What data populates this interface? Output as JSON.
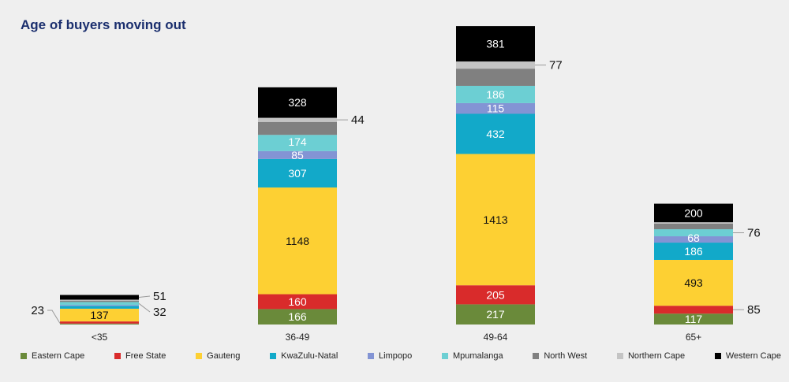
{
  "chart_data": {
    "type": "bar",
    "stacked": true,
    "title": "Age of buyers moving out",
    "categories": [
      "<35",
      "36-49",
      "49-64",
      "65+"
    ],
    "series": [
      {
        "name": "Eastern Cape",
        "color": "#6a8a3a",
        "values": [
          10,
          166,
          217,
          117
        ],
        "labels": [
          null,
          "166",
          "217",
          "117"
        ]
      },
      {
        "name": "Free State",
        "color": "#d92b2b",
        "values": [
          23,
          160,
          205,
          85
        ],
        "labels": [
          "23",
          "160",
          "205",
          "85"
        ]
      },
      {
        "name": "Gauteng",
        "color": "#fdd033",
        "values": [
          137,
          1148,
          1413,
          493
        ],
        "labels": [
          "137",
          "1148",
          "1413",
          "493"
        ]
      },
      {
        "name": "KwaZulu-Natal",
        "color": "#12a9c9",
        "values": [
          30,
          307,
          432,
          186
        ],
        "labels": [
          null,
          "307",
          "432",
          "186"
        ]
      },
      {
        "name": "Limpopo",
        "color": "#8394d4",
        "values": [
          10,
          85,
          115,
          68
        ],
        "labels": [
          null,
          "85",
          "115",
          "68"
        ]
      },
      {
        "name": "Mpumalanga",
        "color": "#6ccfd3",
        "values": [
          32,
          174,
          186,
          76
        ],
        "labels": [
          "32",
          "174",
          "186",
          "76"
        ]
      },
      {
        "name": "North West",
        "color": "#808080",
        "values": [
          15,
          140,
          185,
          60
        ],
        "labels": [
          null,
          null,
          null,
          null
        ]
      },
      {
        "name": "Northern Cape",
        "color": "#c4c4c4",
        "values": [
          10,
          44,
          77,
          15
        ],
        "labels": [
          null,
          "44",
          "77",
          null
        ]
      },
      {
        "name": "Western Cape",
        "color": "#000000",
        "values": [
          51,
          328,
          381,
          200
        ],
        "labels": [
          "51",
          "328",
          "381",
          "200"
        ]
      }
    ],
    "outside_labels": {
      "<35": [
        "Free State",
        "Mpumalanga",
        "Western Cape"
      ],
      "36-49": [
        "Northern Cape"
      ],
      "49-64": [
        "Northern Cape"
      ],
      "65+": [
        "Free State",
        "Mpumalanga"
      ]
    },
    "legend_position": "bottom",
    "grid": false,
    "xlabel": "",
    "ylabel": ""
  }
}
